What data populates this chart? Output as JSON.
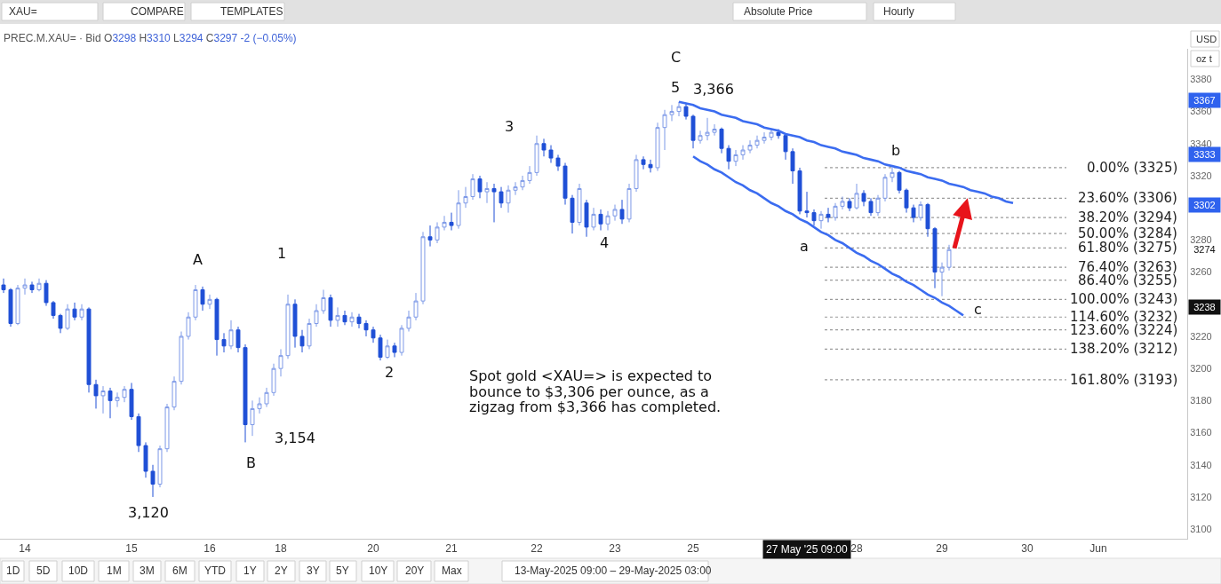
{
  "chart_data": {
    "type": "candlestick",
    "title": "PREC.M.XAU= · Bid O3298 H3310 L3294 C3297 -2 (−0.05%)",
    "categories": [
      null,
      null,
      null,
      "14",
      null,
      null,
      null,
      null,
      null,
      null,
      null,
      null,
      null,
      null,
      null,
      null,
      null,
      null,
      "15",
      null,
      null,
      null,
      null,
      null,
      null,
      null,
      null,
      null,
      null,
      "16",
      null,
      null,
      null,
      null,
      null,
      null,
      null,
      null,
      null,
      "18",
      null,
      null,
      null,
      null,
      null,
      null,
      null,
      null,
      null,
      null,
      null,
      null,
      "20",
      null,
      null,
      null,
      null,
      null,
      null,
      null,
      null,
      null,
      null,
      "21",
      null,
      null,
      null,
      null,
      null,
      null,
      null,
      null,
      null,
      null,
      null,
      "22",
      null,
      null,
      null,
      null,
      null,
      null,
      null,
      null,
      null,
      null,
      "23",
      null,
      null,
      null,
      null,
      null,
      null,
      null,
      null,
      null,
      null,
      "25",
      null,
      null,
      null,
      null,
      null,
      null,
      null,
      null,
      null,
      null,
      null,
      null,
      null,
      null,
      null,
      null,
      null,
      null,
      null,
      null,
      null,
      null,
      "28",
      null,
      null,
      null,
      null,
      null,
      null,
      null,
      null,
      null,
      null,
      null,
      "29",
      null,
      null,
      null,
      null,
      null,
      null,
      null,
      null,
      null,
      null,
      null,
      "30",
      null,
      null,
      null,
      null,
      null,
      null,
      null,
      null,
      null,
      "Jun",
      null,
      null,
      null,
      null,
      null,
      null,
      null,
      null,
      null,
      null,
      null,
      null
    ],
    "ohlc": [
      [
        3252,
        3256,
        3247,
        3249
      ],
      [
        3249,
        3250,
        3226,
        3228
      ],
      [
        3228,
        3252,
        3227,
        3250
      ],
      [
        3250,
        3256,
        3246,
        3252
      ],
      [
        3252,
        3254,
        3247,
        3249
      ],
      [
        3249,
        3256,
        3248,
        3253
      ],
      [
        3253,
        3255,
        3239,
        3241
      ],
      [
        3241,
        3242,
        3231,
        3233
      ],
      [
        3233,
        3234,
        3222,
        3225
      ],
      [
        3225,
        3240,
        3224,
        3237
      ],
      [
        3237,
        3241,
        3230,
        3232
      ],
      [
        3232,
        3240,
        3230,
        3237
      ],
      [
        3237,
        3238,
        3185,
        3190
      ],
      [
        3190,
        3193,
        3175,
        3183
      ],
      [
        3183,
        3189,
        3172,
        3186
      ],
      [
        3186,
        3188,
        3169,
        3180
      ],
      [
        3180,
        3185,
        3176,
        3182
      ],
      [
        3182,
        3189,
        3179,
        3187
      ],
      [
        3187,
        3191,
        3168,
        3170
      ],
      [
        3170,
        3172,
        3148,
        3152
      ],
      [
        3152,
        3154,
        3132,
        3136
      ],
      [
        3136,
        3140,
        3120,
        3128
      ],
      [
        3128,
        3152,
        3126,
        3150
      ],
      [
        3150,
        3178,
        3148,
        3176
      ],
      [
        3176,
        3195,
        3174,
        3192
      ],
      [
        3192,
        3223,
        3190,
        3220
      ],
      [
        3220,
        3235,
        3218,
        3232
      ],
      [
        3232,
        3252,
        3230,
        3249
      ],
      [
        3249,
        3251,
        3236,
        3240
      ],
      [
        3240,
        3246,
        3237,
        3243
      ],
      [
        3243,
        3244,
        3208,
        3218
      ],
      [
        3218,
        3222,
        3210,
        3214
      ],
      [
        3214,
        3230,
        3212,
        3224
      ],
      [
        3224,
        3226,
        3210,
        3213
      ],
      [
        3213,
        3215,
        3154,
        3165
      ],
      [
        3165,
        3180,
        3158,
        3175
      ],
      [
        3175,
        3182,
        3172,
        3178
      ],
      [
        3178,
        3188,
        3176,
        3185
      ],
      [
        3185,
        3203,
        3183,
        3200
      ],
      [
        3200,
        3212,
        3195,
        3208
      ],
      [
        3208,
        3246,
        3206,
        3240
      ],
      [
        3240,
        3243,
        3213,
        3220
      ],
      [
        3220,
        3224,
        3210,
        3214
      ],
      [
        3214,
        3231,
        3212,
        3228
      ],
      [
        3228,
        3240,
        3226,
        3236
      ],
      [
        3236,
        3249,
        3234,
        3244
      ],
      [
        3244,
        3246,
        3226,
        3230
      ],
      [
        3230,
        3238,
        3226,
        3233
      ],
      [
        3233,
        3236,
        3227,
        3229
      ],
      [
        3229,
        3235,
        3226,
        3232
      ],
      [
        3232,
        3234,
        3225,
        3228
      ],
      [
        3228,
        3230,
        3220,
        3224
      ],
      [
        3224,
        3226,
        3216,
        3219
      ],
      [
        3219,
        3221,
        3205,
        3207
      ],
      [
        3207,
        3218,
        3206,
        3214
      ],
      [
        3214,
        3216,
        3207,
        3210
      ],
      [
        3210,
        3227,
        3208,
        3225
      ],
      [
        3225,
        3236,
        3223,
        3232
      ],
      [
        3232,
        3247,
        3230,
        3242
      ],
      [
        3242,
        3285,
        3240,
        3282
      ],
      [
        3282,
        3289,
        3276,
        3280
      ],
      [
        3280,
        3291,
        3278,
        3288
      ],
      [
        3288,
        3295,
        3286,
        3291
      ],
      [
        3291,
        3297,
        3286,
        3289
      ],
      [
        3289,
        3311,
        3287,
        3303
      ],
      [
        3303,
        3313,
        3300,
        3307
      ],
      [
        3307,
        3321,
        3305,
        3318
      ],
      [
        3318,
        3320,
        3306,
        3310
      ],
      [
        3310,
        3316,
        3303,
        3312
      ],
      [
        3312,
        3315,
        3291,
        3310
      ],
      [
        3310,
        3313,
        3300,
        3303
      ],
      [
        3303,
        3314,
        3297,
        3311
      ],
      [
        3311,
        3316,
        3308,
        3313
      ],
      [
        3313,
        3320,
        3311,
        3317
      ],
      [
        3317,
        3326,
        3315,
        3322
      ],
      [
        3322,
        3345,
        3320,
        3340
      ],
      [
        3340,
        3343,
        3332,
        3336
      ],
      [
        3336,
        3339,
        3328,
        3331
      ],
      [
        3331,
        3333,
        3323,
        3326
      ],
      [
        3326,
        3328,
        3302,
        3306
      ],
      [
        3306,
        3308,
        3284,
        3291
      ],
      [
        3291,
        3315,
        3289,
        3312
      ],
      [
        3303,
        3305,
        3282,
        3288
      ],
      [
        3288,
        3300,
        3286,
        3296
      ],
      [
        3296,
        3299,
        3286,
        3290
      ],
      [
        3290,
        3298,
        3286,
        3295
      ],
      [
        3295,
        3302,
        3292,
        3299
      ],
      [
        3299,
        3305,
        3290,
        3293
      ],
      [
        3293,
        3315,
        3291,
        3312
      ],
      [
        3312,
        3333,
        3310,
        3330
      ],
      [
        3330,
        3332,
        3324,
        3327
      ],
      [
        3327,
        3330,
        3322,
        3325
      ],
      [
        3325,
        3353,
        3323,
        3350
      ],
      [
        3350,
        3361,
        3336,
        3358
      ],
      [
        3358,
        3364,
        3354,
        3360
      ],
      [
        3360,
        3366,
        3357,
        3363
      ],
      [
        3363,
        3365,
        3355,
        3357
      ],
      [
        3357,
        3358,
        3337,
        3342
      ],
      [
        3342,
        3348,
        3340,
        3345
      ],
      [
        3345,
        3356,
        3342,
        3347
      ],
      [
        3347,
        3352,
        3345,
        3349
      ],
      [
        3349,
        3350,
        3334,
        3337
      ],
      [
        3337,
        3339,
        3324,
        3329
      ],
      [
        3329,
        3336,
        3326,
        3333
      ],
      [
        3333,
        3339,
        3330,
        3336
      ],
      [
        3336,
        3342,
        3334,
        3339
      ],
      [
        3339,
        3345,
        3337,
        3342
      ],
      [
        3342,
        3347,
        3340,
        3344
      ],
      [
        3344,
        3349,
        3342,
        3347
      ],
      [
        3347,
        3349,
        3343,
        3345
      ],
      [
        3345,
        3346,
        3330,
        3335
      ],
      [
        3335,
        3337,
        3315,
        3323
      ],
      [
        3323,
        3325,
        3296,
        3298
      ],
      [
        3298,
        3310,
        3294,
        3297
      ],
      [
        3297,
        3299,
        3289,
        3292
      ],
      [
        3292,
        3298,
        3287,
        3296
      ],
      [
        3296,
        3300,
        3291,
        3294
      ],
      [
        3294,
        3303,
        3292,
        3301
      ],
      [
        3301,
        3307,
        3299,
        3304
      ],
      [
        3304,
        3306,
        3298,
        3300
      ],
      [
        3300,
        3315,
        3299,
        3309
      ],
      [
        3309,
        3311,
        3301,
        3304
      ],
      [
        3304,
        3306,
        3295,
        3297
      ],
      [
        3297,
        3308,
        3295,
        3306
      ],
      [
        3306,
        3321,
        3304,
        3319
      ],
      [
        3319,
        3325,
        3316,
        3322
      ],
      [
        3322,
        3323,
        3309,
        3311
      ],
      [
        3311,
        3312,
        3297,
        3300
      ],
      [
        3300,
        3302,
        3291,
        3294
      ],
      [
        3294,
        3304,
        3292,
        3302
      ],
      [
        3302,
        3303,
        3282,
        3287
      ],
      [
        3287,
        3288,
        3250,
        3260
      ],
      [
        3260,
        3266,
        3245,
        3263
      ],
      [
        3263,
        3277,
        3261,
        3274
      ],
      null,
      null,
      null,
      null,
      null,
      null,
      null,
      null,
      null,
      null,
      null,
      null,
      null,
      null,
      null,
      null,
      null,
      null,
      null,
      null,
      null,
      null,
      null,
      null,
      null,
      null,
      null,
      null,
      null,
      null,
      null,
      null,
      null
    ],
    "colors": [
      "#1f4fd6",
      "#1f4fd6",
      "#ffffff",
      "#ffffff",
      "#1f4fd6",
      "#ffffff",
      "#1f4fd6",
      "#1f4fd6",
      "#1f4fd6",
      "#ffffff",
      "#1f4fd6",
      "#ffffff",
      "#1f4fd6",
      "#1f4fd6",
      "#ffffff",
      "#1f4fd6",
      "#ffffff",
      "#ffffff",
      "#1f4fd6",
      "#1f4fd6",
      "#1f4fd6",
      "#1f4fd6",
      "#ffffff",
      "#ffffff",
      "#ffffff",
      "#ffffff",
      "#ffffff",
      "#ffffff",
      "#1f4fd6",
      "#ffffff",
      "#1f4fd6",
      "#1f4fd6",
      "#ffffff",
      "#1f4fd6",
      "#1f4fd6",
      "#ffffff",
      "#ffffff",
      "#ffffff",
      "#ffffff",
      "#ffffff",
      "#ffffff",
      "#1f4fd6",
      "#1f4fd6",
      "#ffffff",
      "#ffffff",
      "#ffffff",
      "#1f4fd6",
      "#ffffff",
      "#1f4fd6",
      "#ffffff",
      "#1f4fd6",
      "#1f4fd6",
      "#1f4fd6",
      "#1f4fd6",
      "#ffffff",
      "#1f4fd6",
      "#ffffff",
      "#ffffff",
      "#ffffff",
      "#ffffff",
      "#1f4fd6",
      "#ffffff",
      "#ffffff",
      "#1f4fd6",
      "#ffffff",
      "#ffffff",
      "#ffffff",
      "#1f4fd6",
      "#ffffff",
      "#1f4fd6",
      "#1f4fd6",
      "#ffffff",
      "#ffffff",
      "#ffffff",
      "#ffffff",
      "#ffffff",
      "#1f4fd6",
      "#1f4fd6",
      "#1f4fd6",
      "#1f4fd6",
      "#1f4fd6",
      "#ffffff",
      "#1f4fd6",
      "#ffffff",
      "#1f4fd6",
      "#ffffff",
      "#ffffff",
      "#1f4fd6",
      "#ffffff",
      "#ffffff",
      "#1f4fd6",
      "#1f4fd6",
      "#ffffff",
      "#ffffff",
      "#ffffff",
      "#ffffff",
      "#1f4fd6",
      "#1f4fd6",
      "#ffffff",
      "#ffffff",
      "#ffffff",
      "#1f4fd6",
      "#1f4fd6",
      "#ffffff",
      "#ffffff",
      "#ffffff",
      "#ffffff",
      "#ffffff",
      "#ffffff",
      "#1f4fd6",
      "#1f4fd6",
      "#1f4fd6",
      "#1f4fd6",
      "#1f4fd6",
      "#1f4fd6",
      "#ffffff",
      "#1f4fd6",
      "#ffffff",
      "#ffffff",
      "#1f4fd6",
      "#ffffff",
      "#1f4fd6",
      "#1f4fd6",
      "#ffffff",
      "#ffffff",
      "#ffffff",
      "#1f4fd6",
      "#1f4fd6",
      "#1f4fd6",
      "#ffffff",
      "#1f4fd6",
      "#1f4fd6",
      "#ffffff",
      "#ffffff",
      null,
      null,
      null,
      null,
      null,
      null,
      null,
      null,
      null,
      null,
      null,
      null,
      null,
      null,
      null,
      null,
      null,
      null,
      null,
      null,
      null,
      null,
      null,
      null,
      null,
      null,
      null,
      null,
      null,
      null,
      null,
      null,
      null
    ],
    "series": [
      {
        "type": "line",
        "color": "#3b6cf0",
        "values": [
          null,
          null,
          null,
          null,
          null,
          null,
          null,
          null,
          null,
          null,
          null,
          null,
          null,
          null,
          null,
          null,
          null,
          null,
          null,
          null,
          null,
          null,
          null,
          null,
          null,
          null,
          null,
          null,
          null,
          null,
          null,
          null,
          null,
          null,
          null,
          null,
          null,
          null,
          null,
          null,
          null,
          null,
          null,
          null,
          null,
          null,
          null,
          null,
          null,
          null,
          null,
          null,
          null,
          null,
          null,
          null,
          null,
          null,
          null,
          null,
          null,
          null,
          null,
          null,
          null,
          null,
          null,
          null,
          null,
          null,
          null,
          null,
          null,
          null,
          null,
          null,
          null,
          null,
          null,
          null,
          null,
          null,
          null,
          null,
          null,
          null,
          null,
          null,
          null,
          null,
          null,
          null,
          null,
          null,
          null,
          3366,
          3365,
          3364,
          3362,
          3361,
          3360,
          3358,
          3357,
          3356,
          3354,
          3353,
          3352,
          3350,
          3349,
          3348,
          3346,
          3345,
          3344,
          3342,
          3341,
          3339,
          3338,
          3337,
          3335,
          3334,
          3333,
          3331,
          3330,
          3329,
          3327,
          3326,
          3325,
          3323,
          3322,
          3321,
          3319,
          3318,
          3317,
          3315,
          3314,
          3313,
          3311,
          3310,
          3309,
          3307,
          3306,
          3304,
          3303,
          null,
          null,
          null,
          null,
          null,
          null,
          null,
          null,
          null,
          null,
          null,
          null,
          null,
          null,
          null,
          null,
          null,
          null,
          null,
          null,
          null,
          null,
          null,
          null
        ]
      },
      {
        "type": "line",
        "color": "#3b6cf0",
        "values": [
          null,
          null,
          null,
          null,
          null,
          null,
          null,
          null,
          null,
          null,
          null,
          null,
          null,
          null,
          null,
          null,
          null,
          null,
          null,
          null,
          null,
          null,
          null,
          null,
          null,
          null,
          null,
          null,
          null,
          null,
          null,
          null,
          null,
          null,
          null,
          null,
          null,
          null,
          null,
          null,
          null,
          null,
          null,
          null,
          null,
          null,
          null,
          null,
          null,
          null,
          null,
          null,
          null,
          null,
          null,
          null,
          null,
          null,
          null,
          null,
          null,
          null,
          null,
          null,
          null,
          null,
          null,
          null,
          null,
          null,
          null,
          null,
          null,
          null,
          null,
          null,
          null,
          null,
          null,
          null,
          null,
          null,
          null,
          null,
          null,
          null,
          null,
          null,
          null,
          null,
          null,
          null,
          null,
          null,
          null,
          null,
          null,
          3332,
          3329,
          3327,
          3324,
          3322,
          3319,
          3316,
          3314,
          3311,
          3309,
          3306,
          3303,
          3301,
          3298,
          3296,
          3293,
          3291,
          3288,
          3285,
          3283,
          3280,
          3278,
          3275,
          3272,
          3270,
          3267,
          3265,
          3262,
          3259,
          3257,
          3254,
          3252,
          3249,
          3246,
          3244,
          3241,
          3239,
          3236,
          3233,
          null,
          null,
          null,
          null,
          null,
          null,
          null,
          null,
          null,
          null,
          null,
          null,
          null,
          null,
          null,
          null,
          null,
          null,
          null,
          null,
          null,
          null,
          null,
          null,
          null,
          null,
          null,
          null,
          null,
          null,
          null
        ]
      }
    ],
    "ylim": [
      3094,
      3399
    ],
    "yticks": [
      3100,
      3120,
      3140,
      3160,
      3180,
      3200,
      3220,
      3260,
      3280,
      3320,
      3340,
      3360,
      3380
    ],
    "ref_lines": [
      {
        "axis": "y",
        "value": 3325,
        "label": "0.00% (3325)",
        "color": "#9a9a9a",
        "line_style": "dotted"
      },
      {
        "axis": "y",
        "value": 3306,
        "label": "23.60% (3306)",
        "color": "#9a9a9a",
        "line_style": "dotted"
      },
      {
        "axis": "y",
        "value": 3294,
        "label": "38.20% (3294)",
        "color": "#9a9a9a",
        "line_style": "dotted"
      },
      {
        "axis": "y",
        "value": 3284,
        "label": "50.00% (3284)",
        "color": "#9a9a9a",
        "line_style": "dotted"
      },
      {
        "axis": "y",
        "value": 3275,
        "label": "61.80% (3275)",
        "color": "#9a9a9a",
        "line_style": "dotted"
      },
      {
        "axis": "y",
        "value": 3263,
        "label": "76.40% (3263)",
        "color": "#9a9a9a",
        "line_style": "dotted"
      },
      {
        "axis": "y",
        "value": 3255,
        "label": "86.40% (3255)",
        "color": "#9a9a9a",
        "line_style": "dotted"
      },
      {
        "axis": "y",
        "value": 3243,
        "label": "100.00% (3243)",
        "color": "#9a9a9a",
        "line_style": "dotted"
      },
      {
        "axis": "y",
        "value": 3232,
        "label": "114.60% (3232)",
        "color": "#9a9a9a",
        "line_style": "dotted"
      },
      {
        "axis": "y",
        "value": 3224,
        "label": "123.60% (3224)",
        "color": "#9a9a9a",
        "line_style": "dotted"
      },
      {
        "axis": "y",
        "value": 3212,
        "label": "138.20% (3212)",
        "color": "#9a9a9a",
        "line_style": "dotted"
      },
      {
        "axis": "y",
        "value": 3193,
        "label": "161.80% (3193)",
        "color": "#9a9a9a",
        "line_style": "dotted"
      }
    ],
    "annotations": [
      {
        "text": "3367",
        "y": 3367
      },
      {
        "text": "3333",
        "y": 3333
      },
      {
        "text": "3302",
        "y": 3302
      },
      "A",
      "B",
      "1",
      "2",
      "3",
      "4",
      "5",
      "C",
      "a",
      "b",
      "c",
      "3,120",
      "3,154",
      "3,366",
      "27 May '25 09:00",
      "3238",
      "3274",
      "Spot gold <XAU=> is expected to\nbounce to $3,306 per ounce, as a\nzigzag from $3,366 has completed.",
      "XAU=",
      "COMPARE",
      "TEMPLATES",
      "Absolute Price",
      "Hourly",
      "USD",
      "oz t",
      "1D",
      "5D",
      "10D",
      "1M",
      "3M",
      "6M",
      "YTD",
      "1Y",
      "2Y",
      "3Y",
      "5Y",
      "10Y",
      "20Y",
      "Max",
      "13-May-2025 09:00 – 29-May-2025 03:00"
    ]
  }
}
